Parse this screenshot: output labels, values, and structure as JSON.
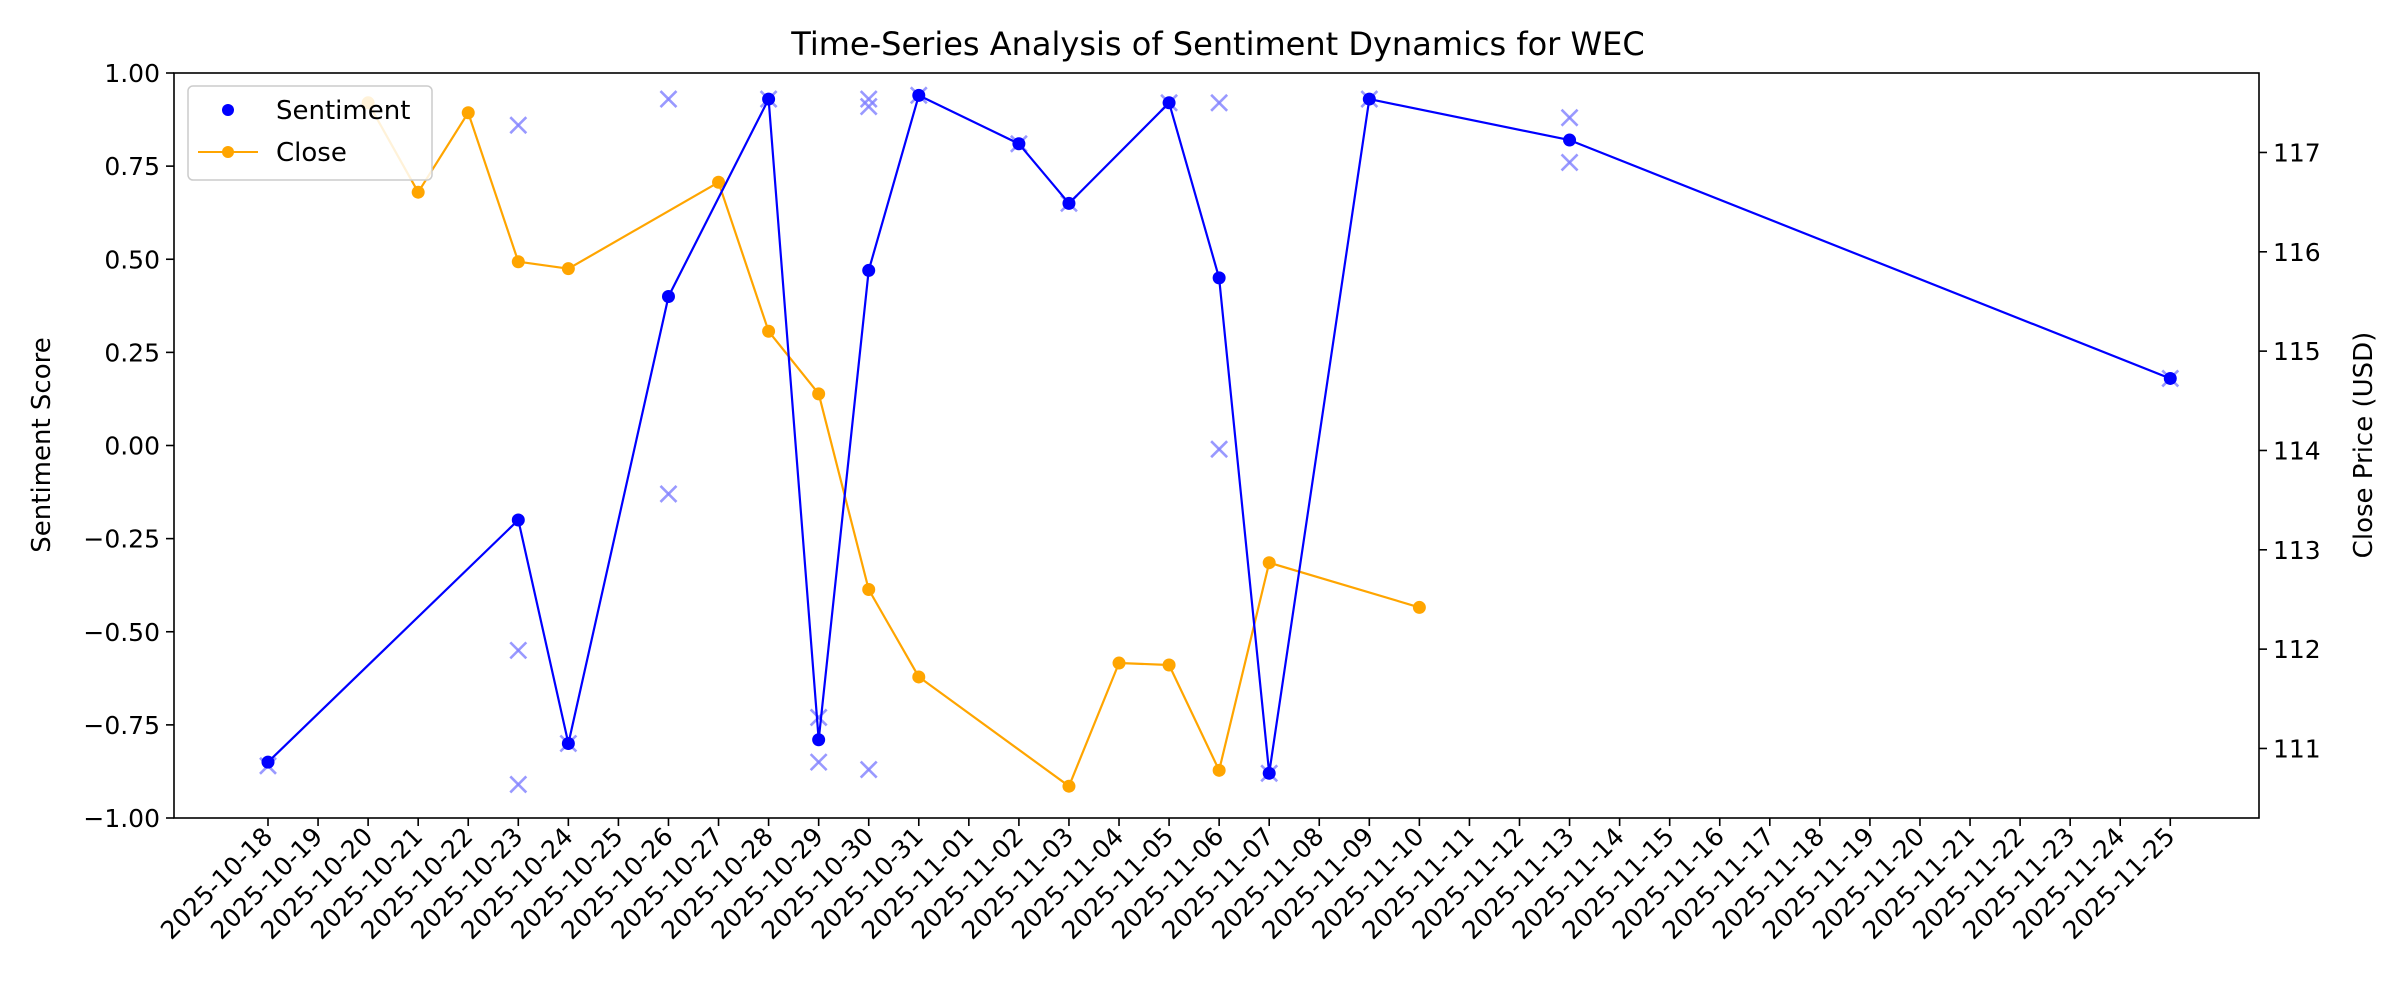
{
  "chart_data": {
    "type": "line",
    "title": "Time-Series Analysis of Sentiment Dynamics for WEC",
    "ylabel": "Sentiment Score",
    "ylabel_right": "Close Price (USD)",
    "xlabel": "",
    "ylim": [
      -1.0,
      1.0
    ],
    "ylim_right": [
      110.3,
      117.8
    ],
    "yticks": [
      "1.00",
      "0.75",
      "0.50",
      "0.25",
      "0.00",
      "−0.25",
      "−0.50",
      "−0.75",
      "−1.00"
    ],
    "yticks_right": [
      "117",
      "116",
      "115",
      "114",
      "113",
      "112",
      "111"
    ],
    "x_dates": [
      "2025-10-18",
      "2025-10-19",
      "2025-10-20",
      "2025-10-21",
      "2025-10-22",
      "2025-10-23",
      "2025-10-24",
      "2025-10-25",
      "2025-10-26",
      "2025-10-27",
      "2025-10-28",
      "2025-10-29",
      "2025-10-30",
      "2025-10-31",
      "2025-11-01",
      "2025-11-02",
      "2025-11-03",
      "2025-11-04",
      "2025-11-05",
      "2025-11-06",
      "2025-11-07",
      "2025-11-08",
      "2025-11-09",
      "2025-11-10",
      "2025-11-11",
      "2025-11-12",
      "2025-11-13",
      "2025-11-14",
      "2025-11-15",
      "2025-11-16",
      "2025-11-17",
      "2025-11-18",
      "2025-11-19",
      "2025-11-20",
      "2025-11-21",
      "2025-11-22",
      "2025-11-23",
      "2025-11-24",
      "2025-11-25"
    ],
    "grid": false,
    "legend_position": "top-left",
    "series": [
      {
        "name": "Sentiment",
        "axis": "left",
        "color": "#0000ff",
        "marker": "circle",
        "points": [
          {
            "x": "2025-10-18",
            "y": -0.85
          },
          {
            "x": "2025-10-23",
            "y": -0.2
          },
          {
            "x": "2025-10-24",
            "y": -0.8
          },
          {
            "x": "2025-10-26",
            "y": 0.4
          },
          {
            "x": "2025-10-28",
            "y": 0.93
          },
          {
            "x": "2025-10-29",
            "y": -0.79
          },
          {
            "x": "2025-10-30",
            "y": 0.47
          },
          {
            "x": "2025-10-31",
            "y": 0.94
          },
          {
            "x": "2025-11-02",
            "y": 0.81
          },
          {
            "x": "2025-11-03",
            "y": 0.65
          },
          {
            "x": "2025-11-05",
            "y": 0.92
          },
          {
            "x": "2025-11-06",
            "y": 0.45
          },
          {
            "x": "2025-11-07",
            "y": -0.88
          },
          {
            "x": "2025-11-09",
            "y": 0.93
          },
          {
            "x": "2025-11-13",
            "y": 0.82
          },
          {
            "x": "2025-11-25",
            "y": 0.18
          }
        ]
      },
      {
        "name": "Close",
        "axis": "right",
        "color": "#ffa500",
        "marker": "circle",
        "points": [
          {
            "x": "2025-10-20",
            "y": 117.5
          },
          {
            "x": "2025-10-21",
            "y": 116.6
          },
          {
            "x": "2025-10-22",
            "y": 117.4
          },
          {
            "x": "2025-10-23",
            "y": 115.9
          },
          {
            "x": "2025-10-24",
            "y": 115.83
          },
          {
            "x": "2025-10-27",
            "y": 116.7
          },
          {
            "x": "2025-10-28",
            "y": 115.2
          },
          {
            "x": "2025-10-29",
            "y": 114.57
          },
          {
            "x": "2025-10-30",
            "y": 112.6
          },
          {
            "x": "2025-10-31",
            "y": 111.72
          },
          {
            "x": "2025-11-03",
            "y": 110.62
          },
          {
            "x": "2025-11-04",
            "y": 111.86
          },
          {
            "x": "2025-11-05",
            "y": 111.84
          },
          {
            "x": "2025-11-06",
            "y": 110.78
          },
          {
            "x": "2025-11-07",
            "y": 112.87
          },
          {
            "x": "2025-11-10",
            "y": 112.42
          }
        ]
      }
    ],
    "raw_points": {
      "color": "#8080ff",
      "marker": "x",
      "points": [
        {
          "x": "2025-10-18",
          "y": -0.86
        },
        {
          "x": "2025-10-23",
          "y": 0.86
        },
        {
          "x": "2025-10-23",
          "y": -0.55
        },
        {
          "x": "2025-10-23",
          "y": -0.91
        },
        {
          "x": "2025-10-24",
          "y": -0.8
        },
        {
          "x": "2025-10-26",
          "y": 0.93
        },
        {
          "x": "2025-10-26",
          "y": -0.13
        },
        {
          "x": "2025-10-28",
          "y": 0.93
        },
        {
          "x": "2025-10-29",
          "y": -0.73
        },
        {
          "x": "2025-10-29",
          "y": -0.85
        },
        {
          "x": "2025-10-30",
          "y": 0.93
        },
        {
          "x": "2025-10-30",
          "y": 0.91
        },
        {
          "x": "2025-10-30",
          "y": -0.87
        },
        {
          "x": "2025-10-31",
          "y": 0.94
        },
        {
          "x": "2025-11-02",
          "y": 0.81
        },
        {
          "x": "2025-11-03",
          "y": 0.65
        },
        {
          "x": "2025-11-05",
          "y": 0.92
        },
        {
          "x": "2025-11-06",
          "y": 0.92
        },
        {
          "x": "2025-11-06",
          "y": -0.01
        },
        {
          "x": "2025-11-07",
          "y": -0.88
        },
        {
          "x": "2025-11-09",
          "y": 0.93
        },
        {
          "x": "2025-11-13",
          "y": 0.88
        },
        {
          "x": "2025-11-13",
          "y": 0.76
        },
        {
          "x": "2025-11-25",
          "y": 0.18
        }
      ]
    }
  }
}
